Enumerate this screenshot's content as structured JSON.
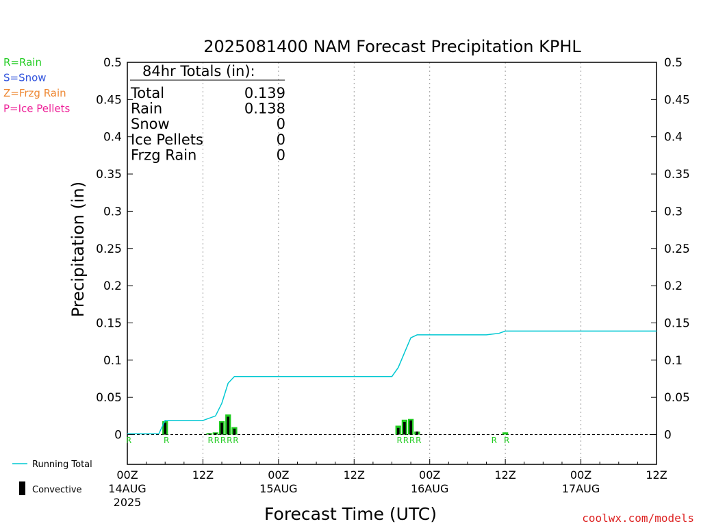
{
  "chart_data": {
    "type": "bar",
    "title": "2025081400 NAM Forecast Precipitation KPHL",
    "xlabel": "Forecast Time (UTC)",
    "ylabel": "Precipitation (in)",
    "ylim": [
      -0.04,
      0.5
    ],
    "xlim_hours": [
      0,
      84
    ],
    "y_ticks": [
      "0",
      "0.05",
      "0.1",
      "0.15",
      "0.2",
      "0.25",
      "0.3",
      "0.35",
      "0.4",
      "0.45",
      "0.5"
    ],
    "x_ticks": [
      {
        "hour": 0,
        "label": "00Z",
        "date": "14AUG",
        "year": "2025"
      },
      {
        "hour": 12,
        "label": "12Z",
        "date": "",
        "year": ""
      },
      {
        "hour": 24,
        "label": "00Z",
        "date": "15AUG",
        "year": ""
      },
      {
        "hour": 36,
        "label": "12Z",
        "date": "",
        "year": ""
      },
      {
        "hour": 48,
        "label": "00Z",
        "date": "16AUG",
        "year": ""
      },
      {
        "hour": 60,
        "label": "12Z",
        "date": "",
        "year": ""
      },
      {
        "hour": 72,
        "label": "00Z",
        "date": "17AUG",
        "year": ""
      },
      {
        "hour": 84,
        "label": "12Z",
        "date": "",
        "year": ""
      }
    ],
    "grid": "vertical dotted at 12Z/00Z",
    "precip_type_legend": [
      {
        "label": "R=Rain",
        "color": "#22cc22"
      },
      {
        "label": "S=Snow",
        "color": "#3355dd"
      },
      {
        "label": "Z=Frzg Rain",
        "color": "#ee8833"
      },
      {
        "label": "P=Ice Pellets",
        "color": "#ee2299"
      }
    ],
    "series_legend": {
      "running_total": "Running Total",
      "convective": "Convective"
    },
    "totals_box": {
      "heading": "84hr Totals (in):",
      "rows": [
        {
          "label": "Total",
          "value": "0.139"
        },
        {
          "label": "Rain",
          "value": "0.138"
        },
        {
          "label": "Snow",
          "value": "0"
        },
        {
          "label": "Ice Pellets",
          "value": "0"
        },
        {
          "label": "Frzg Rain",
          "value": "0"
        }
      ]
    },
    "bars": [
      {
        "hour": 6,
        "total": 0.018,
        "convective": 0.016
      },
      {
        "hour": 13,
        "total": 0.002,
        "convective": 0.001
      },
      {
        "hour": 14,
        "total": 0.003,
        "convective": 0.002
      },
      {
        "hour": 15,
        "total": 0.018,
        "convective": 0.016
      },
      {
        "hour": 16,
        "total": 0.027,
        "convective": 0.024
      },
      {
        "hour": 17,
        "total": 0.01,
        "convective": 0.008
      },
      {
        "hour": 43,
        "total": 0.012,
        "convective": 0.009
      },
      {
        "hour": 44,
        "total": 0.02,
        "convective": 0.017
      },
      {
        "hour": 45,
        "total": 0.021,
        "convective": 0.019
      },
      {
        "hour": 46,
        "total": 0.004,
        "convective": 0.004
      },
      {
        "hour": 60,
        "total": 0.003,
        "convective": 0.0
      }
    ],
    "type_markers": [
      {
        "hour": 0,
        "type": "R"
      },
      {
        "hour": 6,
        "type": "R"
      },
      {
        "hour": 13,
        "type": "R"
      },
      {
        "hour": 14,
        "type": "R"
      },
      {
        "hour": 15,
        "type": "R"
      },
      {
        "hour": 16,
        "type": "R"
      },
      {
        "hour": 17,
        "type": "R"
      },
      {
        "hour": 43,
        "type": "R"
      },
      {
        "hour": 44,
        "type": "R"
      },
      {
        "hour": 45,
        "type": "R"
      },
      {
        "hour": 46,
        "type": "R"
      },
      {
        "hour": 58,
        "type": "R"
      },
      {
        "hour": 60,
        "type": "R"
      }
    ],
    "running_total": [
      [
        0,
        0.001
      ],
      [
        5,
        0.001
      ],
      [
        6,
        0.019
      ],
      [
        12,
        0.019
      ],
      [
        14,
        0.025
      ],
      [
        15,
        0.042
      ],
      [
        16,
        0.069
      ],
      [
        17,
        0.078
      ],
      [
        18,
        0.078
      ],
      [
        42,
        0.078
      ],
      [
        43,
        0.09
      ],
      [
        44,
        0.11
      ],
      [
        45,
        0.13
      ],
      [
        46,
        0.134
      ],
      [
        57,
        0.134
      ],
      [
        58,
        0.135
      ],
      [
        59,
        0.136
      ],
      [
        60,
        0.139
      ],
      [
        84,
        0.139
      ]
    ],
    "colors": {
      "running_total": "#00c8d2",
      "rain_bar": "#22cc22",
      "convective": "#000000"
    }
  },
  "footer": {
    "credit": "coolwx.com/models"
  }
}
